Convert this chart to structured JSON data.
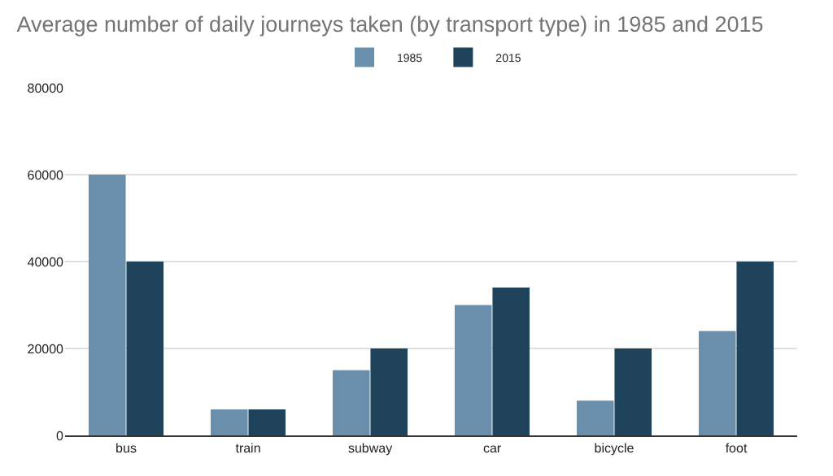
{
  "chart_data": {
    "type": "bar",
    "title": "Average number of daily journeys taken (by transport type) in 1985 and 2015",
    "categories": [
      "bus",
      "train",
      "subway",
      "car",
      "bicycle",
      "foot"
    ],
    "series": [
      {
        "name": "1985",
        "color": "#6a8fac",
        "values": [
          60000,
          6000,
          15000,
          30000,
          8000,
          24000
        ]
      },
      {
        "name": "2015",
        "color": "#1f435a",
        "values": [
          40000,
          6000,
          20000,
          34000,
          20000,
          40000
        ]
      }
    ],
    "ylim": [
      0,
      80000
    ],
    "yticks": [
      0,
      20000,
      40000,
      60000,
      80000
    ],
    "grid": "y",
    "legend": "top"
  }
}
